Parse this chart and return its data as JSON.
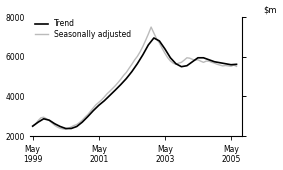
{
  "ylim": [
    2000,
    8000
  ],
  "yticks": [
    2000,
    4000,
    6000,
    8000
  ],
  "xtick_labels": [
    "May\n1999",
    "May\n2001",
    "May\n2003",
    "May\n2005"
  ],
  "legend_entries": [
    "Trend",
    "Seasonally adjusted"
  ],
  "trend_color": "#000000",
  "seasonal_color": "#bbbbbb",
  "trend_lw": 1.2,
  "seasonal_lw": 1.0,
  "background_color": "#ffffff",
  "trend_data": [
    [
      0,
      2500
    ],
    [
      2,
      2700
    ],
    [
      4,
      2870
    ],
    [
      6,
      2800
    ],
    [
      8,
      2620
    ],
    [
      10,
      2480
    ],
    [
      12,
      2380
    ],
    [
      14,
      2380
    ],
    [
      16,
      2480
    ],
    [
      18,
      2700
    ],
    [
      20,
      2980
    ],
    [
      22,
      3280
    ],
    [
      24,
      3550
    ],
    [
      26,
      3780
    ],
    [
      28,
      4050
    ],
    [
      30,
      4320
    ],
    [
      32,
      4600
    ],
    [
      34,
      4900
    ],
    [
      36,
      5250
    ],
    [
      38,
      5650
    ],
    [
      40,
      6100
    ],
    [
      42,
      6600
    ],
    [
      44,
      6950
    ],
    [
      46,
      6800
    ],
    [
      48,
      6400
    ],
    [
      50,
      5950
    ],
    [
      52,
      5650
    ],
    [
      54,
      5500
    ],
    [
      56,
      5550
    ],
    [
      58,
      5750
    ],
    [
      60,
      5950
    ],
    [
      62,
      5950
    ],
    [
      64,
      5850
    ],
    [
      66,
      5750
    ],
    [
      68,
      5700
    ],
    [
      70,
      5650
    ],
    [
      72,
      5600
    ],
    [
      74,
      5620
    ]
  ],
  "seasonal_data": [
    [
      0,
      2480
    ],
    [
      1,
      2600
    ],
    [
      2,
      2780
    ],
    [
      3,
      2920
    ],
    [
      4,
      2950
    ],
    [
      5,
      2870
    ],
    [
      6,
      2780
    ],
    [
      7,
      2660
    ],
    [
      8,
      2540
    ],
    [
      9,
      2450
    ],
    [
      10,
      2390
    ],
    [
      11,
      2360
    ],
    [
      12,
      2340
    ],
    [
      13,
      2390
    ],
    [
      14,
      2460
    ],
    [
      15,
      2530
    ],
    [
      16,
      2580
    ],
    [
      17,
      2680
    ],
    [
      18,
      2800
    ],
    [
      19,
      2950
    ],
    [
      20,
      3080
    ],
    [
      21,
      3250
    ],
    [
      22,
      3420
    ],
    [
      23,
      3580
    ],
    [
      24,
      3700
    ],
    [
      25,
      3820
    ],
    [
      26,
      3970
    ],
    [
      27,
      4130
    ],
    [
      28,
      4260
    ],
    [
      29,
      4400
    ],
    [
      30,
      4540
    ],
    [
      31,
      4700
    ],
    [
      32,
      4870
    ],
    [
      33,
      5060
    ],
    [
      34,
      5210
    ],
    [
      35,
      5420
    ],
    [
      36,
      5620
    ],
    [
      37,
      5840
    ],
    [
      38,
      6020
    ],
    [
      39,
      6250
    ],
    [
      40,
      6520
    ],
    [
      41,
      6830
    ],
    [
      42,
      7150
    ],
    [
      43,
      7500
    ],
    [
      44,
      7200
    ],
    [
      45,
      6900
    ],
    [
      46,
      6700
    ],
    [
      47,
      6430
    ],
    [
      48,
      6180
    ],
    [
      49,
      5960
    ],
    [
      50,
      5790
    ],
    [
      51,
      5680
    ],
    [
      52,
      5620
    ],
    [
      53,
      5680
    ],
    [
      54,
      5720
    ],
    [
      55,
      5830
    ],
    [
      56,
      5950
    ],
    [
      57,
      5930
    ],
    [
      58,
      5870
    ],
    [
      59,
      5830
    ],
    [
      60,
      5850
    ],
    [
      61,
      5780
    ],
    [
      62,
      5720
    ],
    [
      63,
      5780
    ],
    [
      64,
      5780
    ],
    [
      65,
      5720
    ],
    [
      66,
      5680
    ],
    [
      67,
      5620
    ],
    [
      68,
      5580
    ],
    [
      69,
      5540
    ],
    [
      70,
      5560
    ],
    [
      71,
      5540
    ],
    [
      72,
      5520
    ],
    [
      73,
      5580
    ],
    [
      74,
      5520
    ]
  ]
}
